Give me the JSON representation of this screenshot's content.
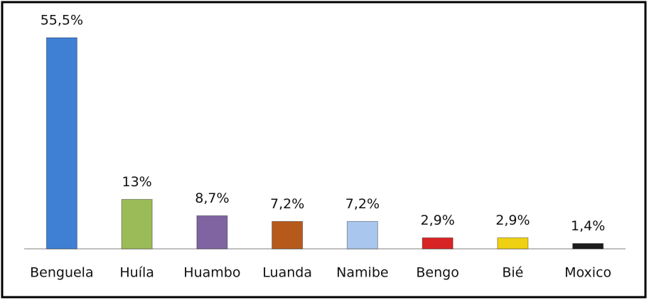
{
  "chart_data": {
    "type": "bar",
    "categories": [
      "Benguela",
      "Huíla",
      "Huambo",
      "Luanda",
      "Namibe",
      "Bengo",
      "Bié",
      "Moxico"
    ],
    "values": [
      55.5,
      13,
      8.7,
      7.2,
      7.2,
      2.9,
      2.9,
      1.4
    ],
    "value_labels": [
      "55,5%",
      "13%",
      "8,7%",
      "7,2%",
      "7,2%",
      "2,9%",
      "2,9%",
      "1,4%"
    ],
    "colors": [
      "#3f7fd4",
      "#9bbb59",
      "#8064a2",
      "#b65a1c",
      "#a9c6ee",
      "#d82424",
      "#f0d012",
      "#1c1c1c"
    ]
  }
}
